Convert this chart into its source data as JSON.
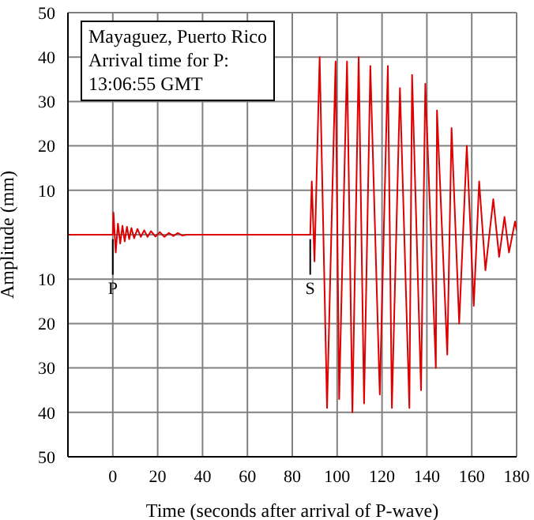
{
  "chart_data": {
    "type": "line",
    "xlabel": "Time (seconds after arrival of P-wave)",
    "ylabel": "Amplitude (mm)",
    "annotations": [
      "Mayaguez, Puerto Rico",
      "Arrival time for P:",
      "13:06:55 GMT"
    ],
    "ref_lines": [
      {
        "axis": "x",
        "value": 0,
        "label": "P",
        "color": "#000000"
      },
      {
        "axis": "x",
        "value": 88,
        "label": "S",
        "color": "#000000"
      }
    ],
    "x": [
      -20,
      0,
      0.3,
      1.3,
      2.3,
      3.3,
      4.3,
      5.3,
      6.3,
      7.3,
      8.3,
      9.5,
      11,
      12.5,
      14,
      15.5,
      17,
      19,
      21,
      23,
      25,
      27,
      29,
      31,
      33,
      88,
      88.7,
      89.9,
      92.2,
      95.5,
      99.3,
      100.9,
      104.4,
      106.8,
      109.6,
      112,
      114.8,
      119,
      122.6,
      124.4,
      128,
      132.2,
      133.4,
      137.4,
      139.3,
      144,
      144.5,
      149.1,
      151,
      154.4,
      157.8,
      160.9,
      163.3,
      166.1,
      169.6,
      172.2,
      174.6,
      176.6,
      179.3,
      180
    ],
    "series": [
      {
        "color": "#dd0000",
        "values": [
          0,
          0,
          5,
          -4,
          2.5,
          -2,
          2,
          -1.5,
          1.8,
          -1,
          1.5,
          -0.8,
          1.3,
          -0.5,
          1,
          -0.5,
          0.8,
          -0.4,
          0.6,
          -0.5,
          0.4,
          -0.3,
          0.4,
          -0.2,
          0,
          0,
          12,
          -6,
          40,
          -39,
          39,
          -37,
          39,
          -40,
          40,
          -38,
          38,
          -36,
          38,
          -39,
          33,
          -39,
          36,
          -35,
          34,
          -30,
          28,
          -27,
          24,
          -20,
          20,
          -16,
          12,
          -8,
          8,
          -5,
          4,
          -4,
          3,
          1
        ]
      }
    ],
    "xlim": [
      -20,
      180
    ],
    "xticks": [
      {
        "value": -20,
        "label": null
      },
      0,
      20,
      40,
      60,
      80,
      100,
      120,
      140,
      160,
      180
    ],
    "ylim": [
      -50,
      50
    ],
    "yticks": [
      50,
      40,
      30,
      20,
      10,
      {
        "value": 0,
        "label": null
      },
      {
        "value": -10,
        "label": "10"
      },
      {
        "value": -20,
        "label": "20"
      },
      {
        "value": -30,
        "label": "30"
      },
      {
        "value": -40,
        "label": "40"
      },
      {
        "value": -50,
        "label": "50"
      }
    ],
    "grid": true,
    "legend": false,
    "marker": "none",
    "line_style": "solid"
  }
}
